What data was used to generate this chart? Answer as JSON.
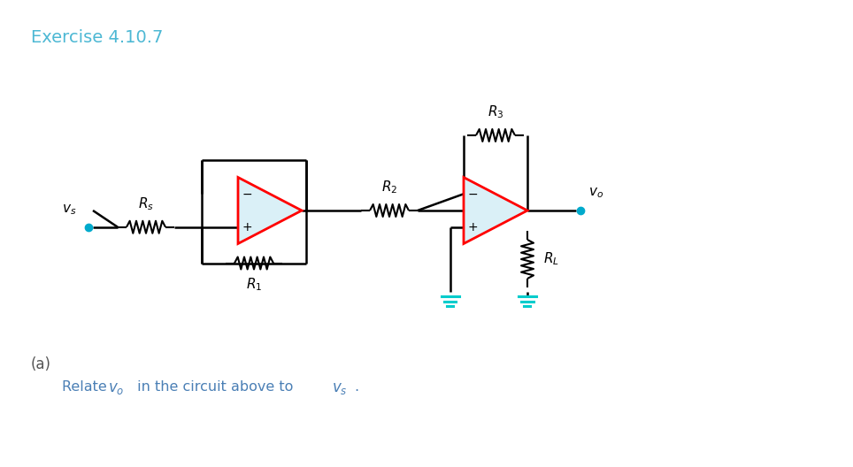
{
  "title": "Exercise 4.10.7",
  "title_color": "#4db8d4",
  "title_fontsize": 14,
  "bg_color": "#ffffff",
  "wire_color": "#000000",
  "op_amp_fill": "#daf0f7",
  "op_amp_border": "#e8000d",
  "resistor_color": "#000000",
  "ground_color": "#00d4d4",
  "node_color": "#00aacc",
  "label_color": "#000000",
  "sub_label_color": "#4a7fb5",
  "text_color_a": "#7a5c2e",
  "figsize": [
    9.64,
    5.28
  ],
  "dpi": 100,
  "subtitle_a": "(a)",
  "subtitle_text": "Relate ",
  "subtitle_v0": "v_o",
  "subtitle_mid": " in the circuit above to ",
  "subtitle_vs": "v_s",
  "subtitle_end": "."
}
